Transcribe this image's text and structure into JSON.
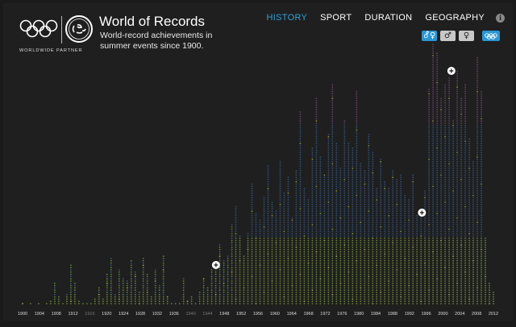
{
  "header": {
    "title": "World of Records",
    "subtitle": "World-record achievements in summer events since 1900.",
    "partner_label": "WORLDWIDE PARTNER"
  },
  "nav": {
    "tabs": [
      {
        "label": "HISTORY",
        "active": true
      },
      {
        "label": "SPORT",
        "active": false
      },
      {
        "label": "DURATION",
        "active": false
      },
      {
        "label": "GEOGRAPHY",
        "active": false
      }
    ],
    "info_icon": "info-icon"
  },
  "filters": {
    "gender_buttons": [
      {
        "name": "both-genders",
        "icon": "⚦♀",
        "selected": true
      },
      {
        "name": "men",
        "icon": "♂",
        "selected": false
      },
      {
        "name": "women",
        "icon": "♀",
        "selected": false
      }
    ],
    "olympics_button": {
      "name": "olympics-rings",
      "icon": "olympic-rings-icon",
      "selected": true
    }
  },
  "colors": {
    "accent": "#2f9fd8",
    "background": "#1f1f1f",
    "dot_old": "#7fa040",
    "dot_mid": "#3d6ea8",
    "dot_high": "#8a5a8a",
    "dot_highlight": "#c8d860"
  },
  "chart_data": {
    "type": "scatter",
    "x_ticks": [
      "1900",
      "1904",
      "1908",
      "1912",
      "1916",
      "1920",
      "1924",
      "1928",
      "1932",
      "1936",
      "1940",
      "1944",
      "1948",
      "1952",
      "1956",
      "1960",
      "1964",
      "1968",
      "1972",
      "1976",
      "1980",
      "1984",
      "1988",
      "1992",
      "1996",
      "2000",
      "2004",
      "2008",
      "2012"
    ],
    "dim_ticks": [
      "1916",
      "1940",
      "1944"
    ],
    "column_heights": [
      1,
      0,
      1,
      0,
      1,
      0,
      1,
      2,
      10,
      4,
      1,
      5,
      18,
      10,
      2,
      1,
      1,
      1,
      3,
      8,
      3,
      14,
      21,
      5,
      16,
      12,
      11,
      20,
      15,
      6,
      21,
      14,
      4,
      16,
      9,
      22,
      4,
      1,
      1,
      1,
      12,
      2,
      4,
      1,
      6,
      12,
      8,
      16,
      18,
      27,
      20,
      22,
      36,
      44,
      31,
      22,
      32,
      54,
      41,
      38,
      48,
      62,
      46,
      42,
      64,
      50,
      57,
      39,
      60,
      86,
      52,
      47,
      70,
      92,
      66,
      58,
      76,
      98,
      72,
      61,
      82,
      72,
      70,
      95,
      63,
      60,
      76,
      68,
      52,
      65,
      55,
      52,
      60,
      56,
      58,
      49,
      47,
      58,
      40,
      40,
      51,
      96,
      116,
      112,
      92,
      98,
      101,
      82,
      104,
      92,
      98,
      74,
      64,
      110,
      95,
      30,
      10,
      6
    ],
    "plus_markers": [
      {
        "year": 1946
      },
      {
        "year": 1995
      },
      {
        "year": 2002
      }
    ]
  }
}
